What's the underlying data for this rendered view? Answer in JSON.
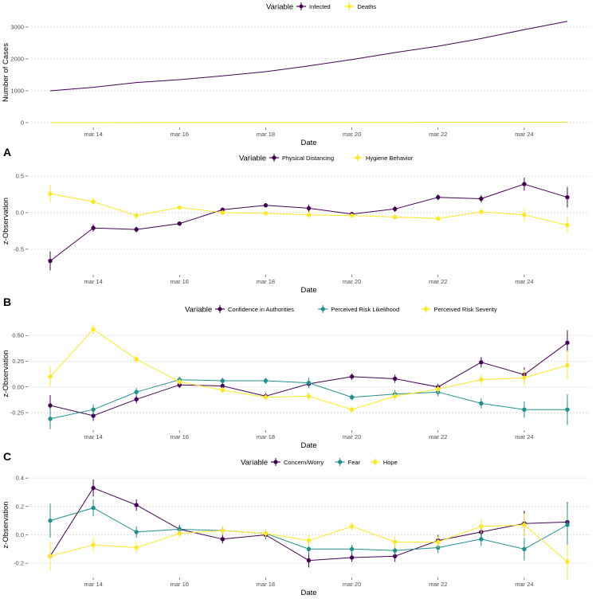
{
  "colors": {
    "purple": "#440154",
    "teal": "#21908C",
    "yellow": "#FDE725"
  },
  "x_dates": [
    "mar 13",
    "mar 14",
    "mar 15",
    "mar 16",
    "mar 17",
    "mar 18",
    "mar 19",
    "mar 20",
    "mar 21",
    "mar 22",
    "mar 23",
    "mar 24",
    "mar 25"
  ],
  "chart_data": [
    {
      "id": "cases",
      "type": "line",
      "tag": "",
      "legend_title": "Variable",
      "legend_position": "top",
      "xlabel": "Date",
      "ylabel": "Number of Cases",
      "ylim": [
        -150,
        3300
      ],
      "yticks": [
        0,
        1000,
        2000,
        3000
      ],
      "ytick_labels": [
        "0",
        "1000",
        "2000",
        "3000"
      ],
      "xticks": [
        "mar 14",
        "mar 16",
        "mar 18",
        "mar 20",
        "mar 22",
        "mar 24"
      ],
      "grid": true,
      "points": false,
      "series": [
        {
          "name": "Infected",
          "color": "#440154",
          "values": [
            1000,
            1110,
            1260,
            1350,
            1470,
            1600,
            1780,
            1980,
            2200,
            2400,
            2640,
            2920,
            3180
          ]
        },
        {
          "name": "Deaths",
          "color": "#FDE725",
          "values": [
            2,
            3,
            4,
            5,
            6,
            7,
            8,
            10,
            11,
            12,
            13,
            14,
            15
          ]
        }
      ]
    },
    {
      "id": "A",
      "type": "line",
      "tag": "A",
      "legend_title": "Variable",
      "legend_position": "top",
      "xlabel": "Date",
      "ylabel": "z-Observation",
      "ylim": [
        -0.85,
        0.62
      ],
      "yticks": [
        -0.5,
        0.0,
        0.5
      ],
      "ytick_labels": [
        "-0.5",
        "0.0",
        "0.5"
      ],
      "xticks": [
        "mar 14",
        "mar 16",
        "mar 18",
        "mar 20",
        "mar 22",
        "mar 24"
      ],
      "grid": true,
      "points": true,
      "series": [
        {
          "name": "Physical Distancing",
          "color": "#440154",
          "values": [
            -0.66,
            -0.21,
            -0.23,
            -0.15,
            0.04,
            0.1,
            0.06,
            -0.02,
            0.05,
            0.21,
            0.19,
            0.39,
            0.21
          ],
          "errors": [
            0.13,
            0.05,
            0.04,
            0.03,
            0.03,
            0.03,
            0.05,
            0.03,
            0.04,
            0.04,
            0.05,
            0.09,
            0.14
          ]
        },
        {
          "name": "Hygiene Behavior",
          "color": "#FDE725",
          "values": [
            0.26,
            0.15,
            -0.04,
            0.07,
            0.0,
            -0.01,
            -0.03,
            -0.04,
            -0.06,
            -0.08,
            0.01,
            -0.03,
            -0.17
          ],
          "errors": [
            0.12,
            0.05,
            0.04,
            0.03,
            0.03,
            0.03,
            0.04,
            0.03,
            0.04,
            0.04,
            0.05,
            0.09,
            0.12
          ]
        }
      ]
    },
    {
      "id": "B",
      "type": "line",
      "tag": "B",
      "legend_title": "Variable",
      "legend_position": "top",
      "xlabel": "Date",
      "ylabel": "z-Observation",
      "ylim": [
        -0.42,
        0.68
      ],
      "yticks": [
        -0.25,
        0.0,
        0.25,
        0.5
      ],
      "ytick_labels": [
        "-0.25",
        "0.00",
        "0.25",
        "0.50"
      ],
      "xticks": [
        "mar 14",
        "mar 16",
        "mar 18",
        "mar 20",
        "mar 22",
        "mar 24"
      ],
      "grid": true,
      "points": true,
      "series": [
        {
          "name": "Confidence in Authorities",
          "color": "#440154",
          "values": [
            -0.18,
            -0.28,
            -0.12,
            0.02,
            0.01,
            -0.09,
            0.03,
            0.1,
            0.08,
            0.0,
            0.24,
            0.12,
            0.43
          ],
          "errors": [
            0.1,
            0.05,
            0.04,
            0.03,
            0.03,
            0.03,
            0.04,
            0.03,
            0.04,
            0.03,
            0.05,
            0.07,
            0.12
          ]
        },
        {
          "name": "Perceived Risk Likelihood",
          "color": "#21908C",
          "values": [
            -0.31,
            -0.22,
            -0.05,
            0.07,
            0.06,
            0.06,
            0.04,
            -0.1,
            -0.07,
            -0.05,
            -0.16,
            -0.22,
            -0.22
          ],
          "errors": [
            0.1,
            0.05,
            0.04,
            0.03,
            0.03,
            0.03,
            0.05,
            0.03,
            0.04,
            0.04,
            0.05,
            0.08,
            0.15
          ]
        },
        {
          "name": "Perceived Risk Severity",
          "color": "#FDE725",
          "values": [
            0.1,
            0.56,
            0.27,
            0.05,
            -0.03,
            -0.1,
            -0.09,
            -0.22,
            -0.09,
            -0.02,
            0.07,
            0.09,
            0.21
          ],
          "errors": [
            0.1,
            0.05,
            0.04,
            0.03,
            0.03,
            0.03,
            0.04,
            0.03,
            0.04,
            0.04,
            0.05,
            0.08,
            0.14
          ]
        }
      ]
    },
    {
      "id": "C",
      "type": "line",
      "tag": "C",
      "legend_title": "Variable",
      "legend_position": "top",
      "xlabel": "Date",
      "ylabel": "z-Observation",
      "ylim": [
        -0.3,
        0.44
      ],
      "yticks": [
        -0.2,
        0.0,
        0.2,
        0.4
      ],
      "ytick_labels": [
        "-0.2",
        "0.0",
        "0.2",
        "0.4"
      ],
      "xticks": [
        "mar 14",
        "mar 16",
        "mar 18",
        "mar 20",
        "mar 22",
        "mar 24"
      ],
      "grid": true,
      "points": true,
      "series": [
        {
          "name": "Concern/Worry",
          "color": "#440154",
          "values": [
            -0.15,
            0.33,
            0.21,
            0.04,
            -0.03,
            0.0,
            -0.18,
            -0.16,
            -0.15,
            -0.04,
            0.02,
            0.08,
            0.09
          ],
          "errors": [
            0.1,
            0.06,
            0.04,
            0.03,
            0.03,
            0.03,
            0.05,
            0.03,
            0.04,
            0.04,
            0.05,
            0.09,
            0.14
          ]
        },
        {
          "name": "Fear",
          "color": "#21908C",
          "values": [
            0.1,
            0.19,
            0.02,
            0.04,
            0.03,
            0.01,
            -0.1,
            -0.1,
            -0.11,
            -0.09,
            -0.03,
            -0.1,
            0.07
          ],
          "errors": [
            0.12,
            0.06,
            0.04,
            0.03,
            0.03,
            0.03,
            0.04,
            0.03,
            0.04,
            0.04,
            0.05,
            0.08,
            0.15
          ]
        },
        {
          "name": "Hope",
          "color": "#FDE725",
          "values": [
            -0.15,
            -0.07,
            -0.09,
            0.01,
            0.03,
            0.01,
            -0.04,
            0.06,
            -0.05,
            -0.05,
            0.06,
            0.07,
            -0.19
          ],
          "errors": [
            0.1,
            0.05,
            0.04,
            0.03,
            0.03,
            0.03,
            0.04,
            0.03,
            0.04,
            0.04,
            0.05,
            0.08,
            0.12
          ]
        }
      ]
    }
  ]
}
